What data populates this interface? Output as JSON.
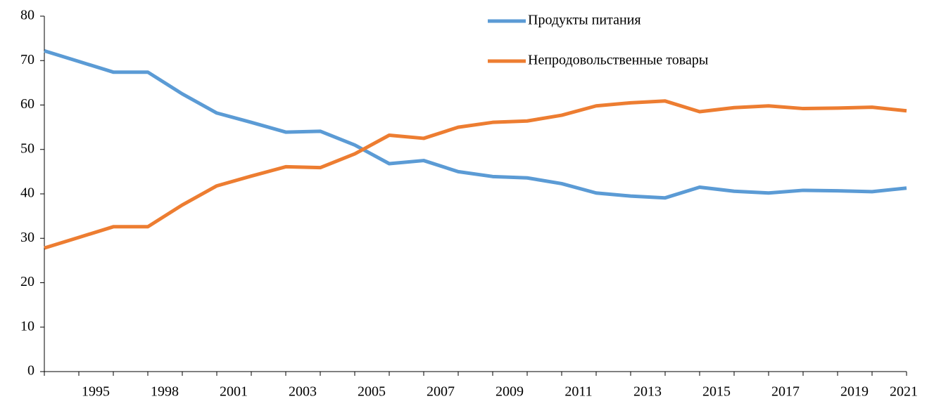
{
  "chart_data": {
    "type": "line",
    "categories": [
      null,
      "1995",
      null,
      "1998",
      null,
      "2001",
      null,
      "2003",
      null,
      "2005",
      null,
      "2007",
      null,
      "2009",
      null,
      "2011",
      null,
      "2013",
      null,
      "2015",
      null,
      "2017",
      null,
      "2019",
      null,
      "2021"
    ],
    "series": [
      {
        "name": "Продукты питания",
        "color": "#5b9bd5",
        "values": [
          72.2,
          69.8,
          67.4,
          67.4,
          62.5,
          58.2,
          56.1,
          53.9,
          54.1,
          51.0,
          46.8,
          47.5,
          45.0,
          43.9,
          43.6,
          42.3,
          40.2,
          39.5,
          39.1,
          41.5,
          40.6,
          40.2,
          40.8,
          40.7,
          40.5,
          41.3
        ]
      },
      {
        "name": "Непродовольственные товары",
        "color": "#ed7d31",
        "values": [
          27.8,
          30.2,
          32.6,
          32.6,
          37.5,
          41.8,
          44.0,
          46.1,
          45.9,
          49.0,
          53.2,
          52.5,
          55.0,
          56.1,
          56.4,
          57.7,
          59.8,
          60.5,
          60.9,
          58.5,
          59.4,
          59.8,
          59.2,
          59.3,
          59.5,
          58.7
        ]
      }
    ],
    "ylim": [
      0,
      80
    ],
    "yticks": [
      0,
      10,
      20,
      30,
      40,
      50,
      60,
      70,
      80
    ],
    "grid": false
  }
}
